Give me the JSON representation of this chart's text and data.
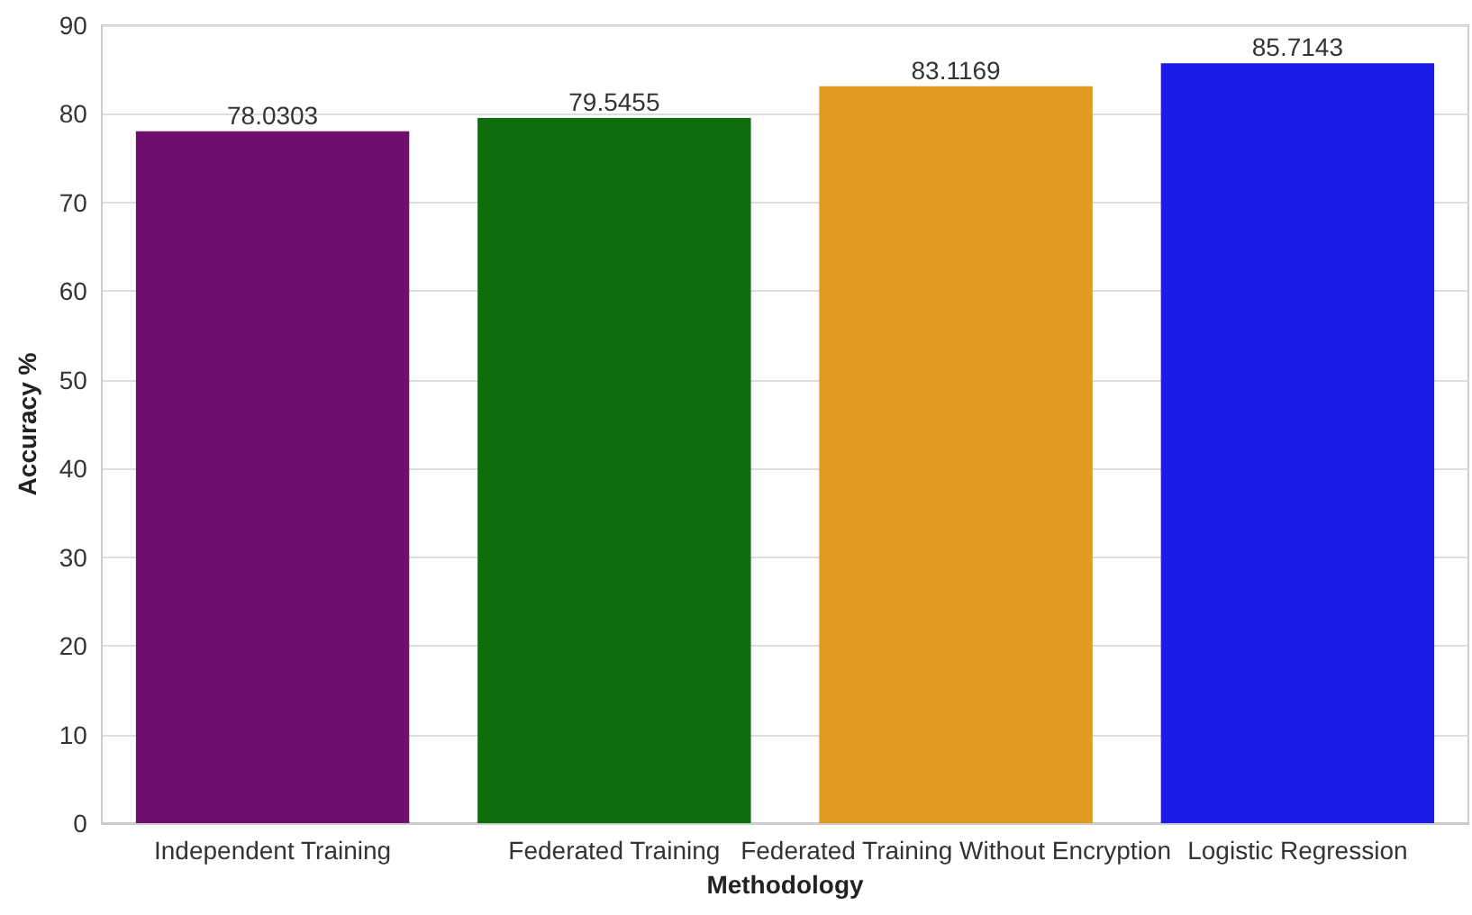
{
  "chart_data": {
    "type": "bar",
    "xlabel": "Methodology",
    "ylabel": "Accuracy %",
    "categories": [
      "Independent Training",
      "Federated Training",
      "Federated Training Without Encryption",
      "Logistic Regression"
    ],
    "values": [
      78.0303,
      79.5455,
      83.1169,
      85.7143
    ],
    "colors": [
      "#700f6e",
      "#0e6e0e",
      "#e09a20",
      "#1c1ce8"
    ],
    "ylim": [
      0,
      90
    ],
    "yticks": [
      0,
      10,
      20,
      30,
      40,
      50,
      60,
      70,
      80,
      90
    ],
    "grid": "y",
    "data_labels": true
  }
}
